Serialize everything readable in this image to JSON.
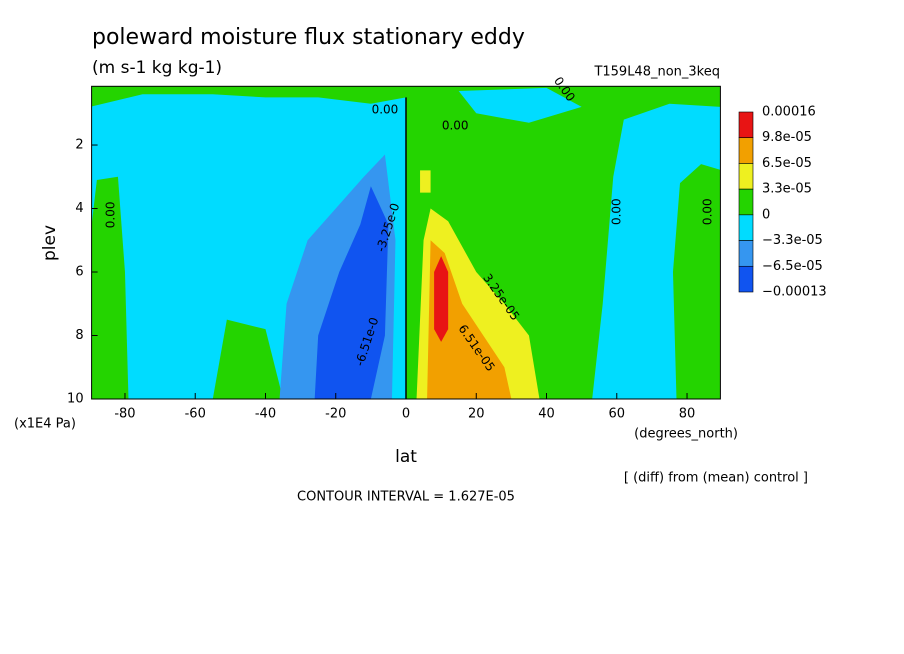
{
  "chart_data": {
    "type": "contour",
    "title": "poleward moisture flux stationary eddy",
    "subtitle": "(m s-1 kg kg-1)",
    "run": "T159L48_non_3keq",
    "x_label": "lat",
    "x_units": "(degrees_north)",
    "y_label": "plev",
    "y_units": "(x1E4 Pa)",
    "note": "[ (diff) from (mean) control ]",
    "contour_interval": "CONTOUR INTERVAL = 1.627E-05",
    "xlim": [
      -89.5,
      89.5
    ],
    "ylim": [
      10,
      0.15
    ],
    "xticks": [
      -80,
      -60,
      -40,
      -20,
      0,
      20,
      40,
      60,
      80
    ],
    "yticks": [
      2,
      4,
      6,
      8,
      10
    ],
    "levels": [
      0.00016,
      {
        "value": 9.8e-05,
        "label": "9.8e-05"
      },
      {
        "value": 6.5e-05,
        "label": "6.5e-05"
      },
      {
        "value": 3.3e-05,
        "label": "3.3e-05"
      },
      0,
      {
        "value": -3.3e-05,
        "label": "−3.3e-05"
      },
      {
        "value": -6.5e-05,
        "label": "−6.5e-05"
      },
      {
        "value": -0.00013,
        "label": "−0.00013"
      }
    ],
    "colors": [
      "#e81414",
      "#f2a000",
      "#eef020",
      "#24d400",
      "#00dcff",
      "#3596f0",
      "#1054f0"
    ],
    "regions": [
      {
        "level": -3.3e-05,
        "outline": [
          [
            -90,
            0.15
          ],
          [
            90,
            0.15
          ],
          [
            90,
            10
          ],
          [
            -90,
            10
          ]
        ]
      },
      {
        "level": 0,
        "outline": [
          [
            -90,
            0.15
          ],
          [
            90,
            0.15
          ],
          [
            90,
            0.8
          ],
          [
            75,
            0.7
          ],
          [
            62,
            1.2
          ],
          [
            59,
            3
          ],
          [
            56,
            7
          ],
          [
            53,
            10
          ],
          [
            0,
            10
          ],
          [
            0,
            0.5
          ],
          [
            -10,
            0.7
          ],
          [
            -25,
            0.5
          ],
          [
            -40,
            0.5
          ],
          [
            -55,
            0.4
          ],
          [
            -75,
            0.4
          ],
          [
            -90,
            0.8
          ]
        ]
      },
      {
        "level": -3.3e-05,
        "outline": [
          [
            15,
            0.3
          ],
          [
            40,
            0.2
          ],
          [
            50,
            0.8
          ],
          [
            35,
            1.3
          ],
          [
            20,
            1.0
          ]
        ]
      },
      {
        "level": 0,
        "outline": [
          [
            -88,
            3.1
          ],
          [
            -82,
            3.0
          ],
          [
            -80,
            6
          ],
          [
            -79,
            10
          ],
          [
            -90,
            10
          ],
          [
            -90,
            5
          ]
        ]
      },
      {
        "level": 0,
        "outline": [
          [
            -55,
            10
          ],
          [
            -51,
            7.5
          ],
          [
            -40,
            7.8
          ],
          [
            -35,
            10
          ]
        ]
      },
      {
        "level": 0,
        "outline": [
          [
            78,
            3.2
          ],
          [
            84,
            2.6
          ],
          [
            90,
            2.8
          ],
          [
            90,
            10
          ],
          [
            77,
            10
          ],
          [
            76,
            6
          ]
        ]
      },
      {
        "level": -6.5e-05,
        "outline": [
          [
            -36,
            10
          ],
          [
            -34,
            7
          ],
          [
            -28,
            5
          ],
          [
            -20,
            4
          ],
          [
            -12,
            3
          ],
          [
            -6,
            2.3
          ],
          [
            -3,
            5
          ],
          [
            -4,
            10
          ]
        ]
      },
      {
        "level": -0.00013,
        "outline": [
          [
            -26,
            10
          ],
          [
            -25,
            8
          ],
          [
            -19,
            6
          ],
          [
            -13,
            4.5
          ],
          [
            -10,
            3.3
          ],
          [
            -5,
            4.5
          ],
          [
            -6,
            8
          ],
          [
            -10,
            10
          ]
        ]
      },
      {
        "level": 3.3e-05,
        "outline": [
          [
            3,
            10
          ],
          [
            5,
            5
          ],
          [
            7,
            4
          ],
          [
            12,
            4.4
          ],
          [
            20,
            6
          ],
          [
            28,
            7
          ],
          [
            35,
            8
          ],
          [
            38,
            10
          ]
        ]
      },
      {
        "level": 3.3e-05,
        "outline": [
          [
            4,
            2.8
          ],
          [
            7,
            2.8
          ],
          [
            7,
            3.5
          ],
          [
            4,
            3.5
          ]
        ]
      },
      {
        "level": 6.5e-05,
        "outline": [
          [
            6,
            10
          ],
          [
            7,
            5
          ],
          [
            11,
            5.4
          ],
          [
            16,
            7
          ],
          [
            22,
            8
          ],
          [
            28,
            9
          ],
          [
            30,
            10
          ]
        ]
      },
      {
        "level": 9.8e-05,
        "outline": [
          [
            8,
            7.8
          ],
          [
            8,
            6
          ],
          [
            10,
            5.5
          ],
          [
            12,
            6
          ],
          [
            12,
            7.8
          ],
          [
            10,
            8.2
          ]
        ]
      }
    ],
    "contour_labels": [
      {
        "text": "0.00",
        "lat": -6,
        "plev": 0.9
      },
      {
        "text": "0.00",
        "lat": 14,
        "plev": 1.4
      },
      {
        "text": "0.00",
        "lat": 45,
        "plev": 0.25
      },
      {
        "text": "0.00",
        "lat": -84,
        "plev": 4.2
      },
      {
        "text": "0.00",
        "lat": 60,
        "plev": 4.1
      },
      {
        "text": "0.00",
        "lat": 86,
        "plev": 4.1
      },
      {
        "text": "-3.25e-0",
        "lat": -5,
        "plev": 4.6
      },
      {
        "text": "3.25e-05",
        "lat": 27,
        "plev": 6.8
      },
      {
        "text": "6.51e-05",
        "lat": 20,
        "plev": 8.4
      },
      {
        "text": "-6.51e-0",
        "lat": -11,
        "plev": 8.2
      }
    ]
  }
}
